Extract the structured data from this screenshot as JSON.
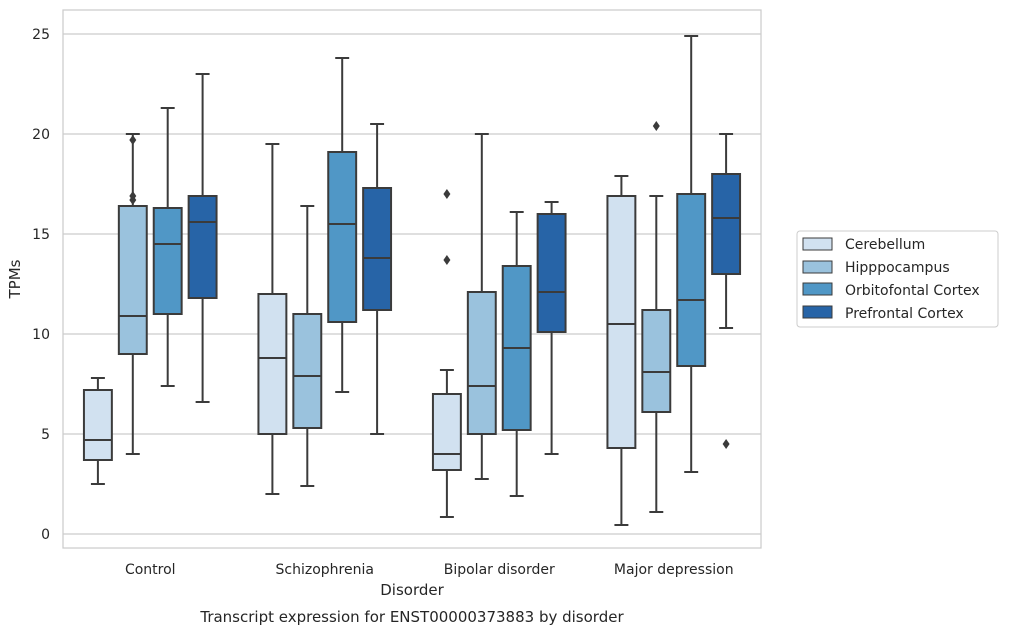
{
  "caption": "Transcript expression for ENST00000373883 by disorder",
  "chart_data": {
    "type": "box",
    "xlabel": "Disorder",
    "ylabel": "TPMs",
    "ylim": [
      -0.7,
      26.2
    ],
    "yticks": [
      0,
      5,
      10,
      15,
      20,
      25
    ],
    "grid": "horizontal",
    "legend_position": "right",
    "categories": [
      "Control",
      "Schizophrenia",
      "Bipolar disorder",
      "Major depression"
    ],
    "series": [
      {
        "name": "Cerebellum",
        "color": "#d1e1f0",
        "boxes": [
          {
            "whisker_low": 2.5,
            "q1": 3.7,
            "median": 4.7,
            "q3": 7.2,
            "whisker_high": 7.8,
            "outliers": []
          },
          {
            "whisker_low": 2.0,
            "q1": 5.0,
            "median": 8.8,
            "q3": 12.0,
            "whisker_high": 19.5,
            "outliers": []
          },
          {
            "whisker_low": 0.85,
            "q1": 3.2,
            "median": 4.0,
            "q3": 7.0,
            "whisker_high": 8.2,
            "outliers": [
              13.7,
              17.0
            ]
          },
          {
            "whisker_low": 0.45,
            "q1": 4.3,
            "median": 10.5,
            "q3": 16.9,
            "whisker_high": 17.9,
            "outliers": []
          }
        ]
      },
      {
        "name": "Hipppocampus",
        "color": "#9ac2dd",
        "boxes": [
          {
            "whisker_low": 4.0,
            "q1": 9.0,
            "median": 10.9,
            "q3": 16.4,
            "whisker_high": 20.0,
            "outliers": [
              16.7,
              16.9,
              19.7
            ]
          },
          {
            "whisker_low": 2.4,
            "q1": 5.3,
            "median": 7.9,
            "q3": 11.0,
            "whisker_high": 16.4,
            "outliers": []
          },
          {
            "whisker_low": 2.75,
            "q1": 5.0,
            "median": 7.4,
            "q3": 12.1,
            "whisker_high": 20.0,
            "outliers": []
          },
          {
            "whisker_low": 1.1,
            "q1": 6.1,
            "median": 8.1,
            "q3": 11.2,
            "whisker_high": 16.9,
            "outliers": [
              20.4
            ]
          }
        ]
      },
      {
        "name": "Orbitofontal Cortex",
        "color": "#5097c6",
        "boxes": [
          {
            "whisker_low": 7.4,
            "q1": 11.0,
            "median": 14.5,
            "q3": 16.3,
            "whisker_high": 21.3,
            "outliers": []
          },
          {
            "whisker_low": 7.1,
            "q1": 10.6,
            "median": 15.5,
            "q3": 19.1,
            "whisker_high": 23.8,
            "outliers": []
          },
          {
            "whisker_low": 1.9,
            "q1": 5.2,
            "median": 9.3,
            "q3": 13.4,
            "whisker_high": 16.1,
            "outliers": []
          },
          {
            "whisker_low": 3.1,
            "q1": 8.4,
            "median": 11.7,
            "q3": 17.0,
            "whisker_high": 24.9,
            "outliers": []
          }
        ]
      },
      {
        "name": "Prefrontal Cortex",
        "color": "#2764a7",
        "boxes": [
          {
            "whisker_low": 6.6,
            "q1": 11.8,
            "median": 15.6,
            "q3": 16.9,
            "whisker_high": 23.0,
            "outliers": []
          },
          {
            "whisker_low": 5.0,
            "q1": 11.2,
            "median": 13.8,
            "q3": 17.3,
            "whisker_high": 20.5,
            "outliers": []
          },
          {
            "whisker_low": 4.0,
            "q1": 10.1,
            "median": 12.1,
            "q3": 16.0,
            "whisker_high": 16.6,
            "outliers": []
          },
          {
            "whisker_low": 10.3,
            "q1": 13.0,
            "median": 15.8,
            "q3": 18.0,
            "whisker_high": 20.0,
            "outliers": [
              4.5
            ]
          }
        ]
      }
    ]
  }
}
